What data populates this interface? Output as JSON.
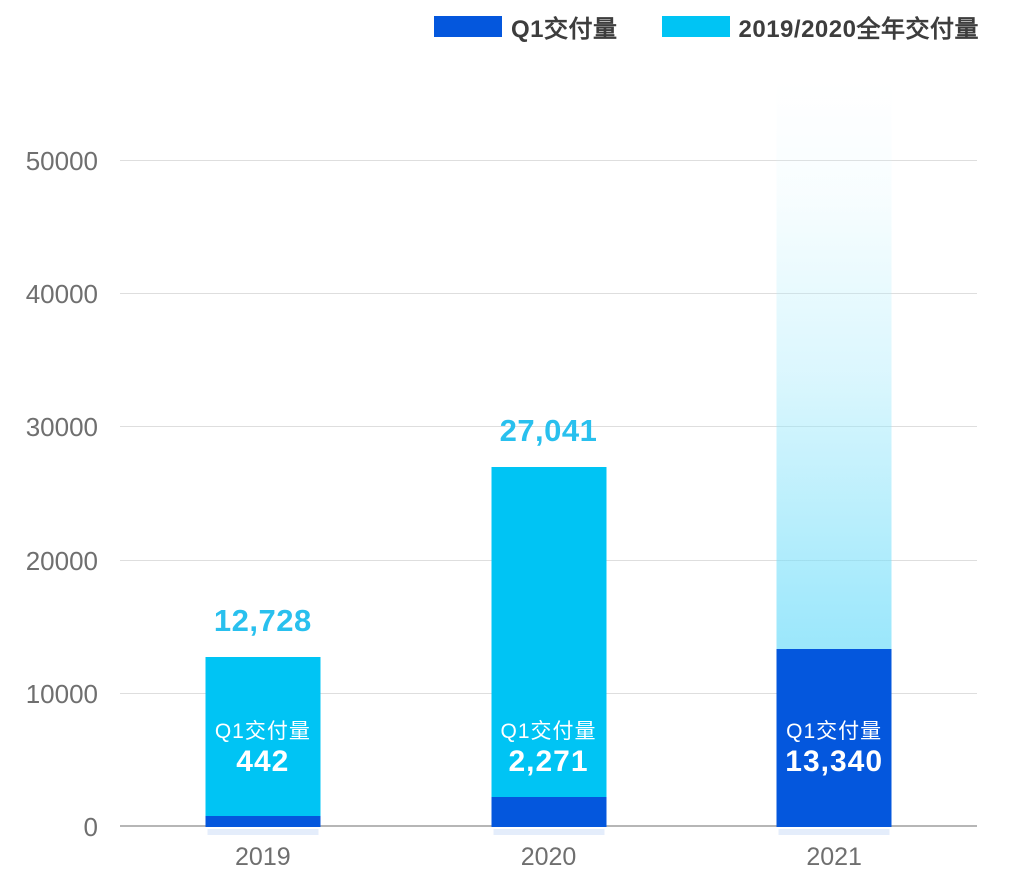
{
  "legend": {
    "items": [
      {
        "label": "Q1交付量",
        "color": "#0457dd"
      },
      {
        "label": "2019/2020全年交付量",
        "color": "#00c4f4"
      }
    ]
  },
  "chart_data": {
    "type": "bar",
    "subtype": "overlaid-stacked-columns",
    "title": "",
    "xlabel": "",
    "ylabel": "",
    "categories": [
      "2019",
      "2020",
      "2021"
    ],
    "series": [
      {
        "name": "Q1交付量",
        "color": "#0457dd",
        "values": [
          442,
          2271,
          13340
        ]
      },
      {
        "name": "2019/2020全年交付量",
        "color": "#00c4f4",
        "values": [
          12728,
          27041,
          null
        ]
      }
    ],
    "y_ticks": [
      0,
      10000,
      20000,
      30000,
      40000,
      50000
    ],
    "ylim": [
      0,
      56600
    ],
    "grid": true,
    "legend_position": "top",
    "bars": [
      {
        "x_label": "2019",
        "inner_title": "Q1交付量",
        "q1_value": 442,
        "q1_label": "442",
        "full_year_value": 12728,
        "total_label": "12,728",
        "bar_style": "solid"
      },
      {
        "x_label": "2020",
        "inner_title": "Q1交付量",
        "q1_value": 2271,
        "q1_label": "2,271",
        "full_year_value": 27041,
        "total_label": "27,041",
        "bar_style": "solid"
      },
      {
        "x_label": "2021",
        "inner_title": "Q1交付量",
        "q1_value": 13340,
        "q1_label": "13,340",
        "full_year_value": null,
        "total_label": "",
        "bar_style": "gradient-fade",
        "drawn_top_estimate": 56600
      }
    ],
    "colors": {
      "q1_bar": "#0457dd",
      "full_year_bar": "#00c4f4",
      "total_label_text": "#29c0ee",
      "axis_text": "#6f6f6f",
      "gridline": "#dedede",
      "baseline": "#b6b6b6",
      "legend_text": "#3d3d3d",
      "inner_label_text": "#ffffff"
    }
  }
}
